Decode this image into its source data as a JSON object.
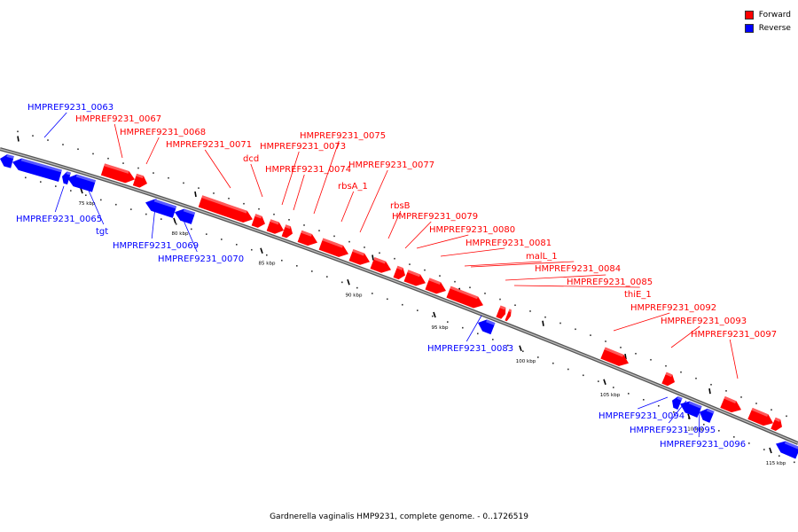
{
  "legend": {
    "forward_label": "Forward",
    "reverse_label": "Reverse",
    "forward_color": "#ff0000",
    "reverse_color": "#0000ff"
  },
  "caption": "Gardnerella vaginalis HMP9231, complete genome. - 0..1726519",
  "ticks": [
    "75 kbp",
    "80 kbp",
    "85 kbp",
    "90 kbp",
    "95 kbp",
    "100 kbp",
    "105 kbp",
    "110 kbp",
    "115 kbp"
  ],
  "genes": [
    {
      "label": "HMPREF9231_0063",
      "strand": "reverse"
    },
    {
      "label": "HMPREF9231_0065",
      "strand": "reverse"
    },
    {
      "label": "tgt",
      "strand": "reverse"
    },
    {
      "label": "HMPREF9231_0067",
      "strand": "forward"
    },
    {
      "label": "HMPREF9231_0068",
      "strand": "forward"
    },
    {
      "label": "HMPREF9231_0069",
      "strand": "reverse"
    },
    {
      "label": "HMPREF9231_0070",
      "strand": "reverse"
    },
    {
      "label": "HMPREF9231_0071",
      "strand": "forward"
    },
    {
      "label": "dcd",
      "strand": "forward"
    },
    {
      "label": "HMPREF9231_0073",
      "strand": "forward"
    },
    {
      "label": "HMPREF9231_0074",
      "strand": "forward"
    },
    {
      "label": "HMPREF9231_0075",
      "strand": "forward"
    },
    {
      "label": "rbsA_1",
      "strand": "forward"
    },
    {
      "label": "HMPREF9231_0077",
      "strand": "forward"
    },
    {
      "label": "rbsB",
      "strand": "forward"
    },
    {
      "label": "HMPREF9231_0079",
      "strand": "forward"
    },
    {
      "label": "HMPREF9231_0080",
      "strand": "forward"
    },
    {
      "label": "HMPREF9231_0081",
      "strand": "forward"
    },
    {
      "label": "malL_1",
      "strand": "forward"
    },
    {
      "label": "HMPREF9231_0083",
      "strand": "reverse"
    },
    {
      "label": "HMPREF9231_0084",
      "strand": "forward"
    },
    {
      "label": "HMPREF9231_0085",
      "strand": "forward"
    },
    {
      "label": "thiE_1",
      "strand": "forward"
    },
    {
      "label": "HMPREF9231_0092",
      "strand": "forward"
    },
    {
      "label": "HMPREF9231_0093",
      "strand": "forward"
    },
    {
      "label": "HMPREF9231_0094",
      "strand": "reverse"
    },
    {
      "label": "HMPREF9231_0095",
      "strand": "reverse"
    },
    {
      "label": "HMPREF9231_0096",
      "strand": "reverse"
    },
    {
      "label": "HMPREF9231_0097",
      "strand": "forward"
    }
  ]
}
